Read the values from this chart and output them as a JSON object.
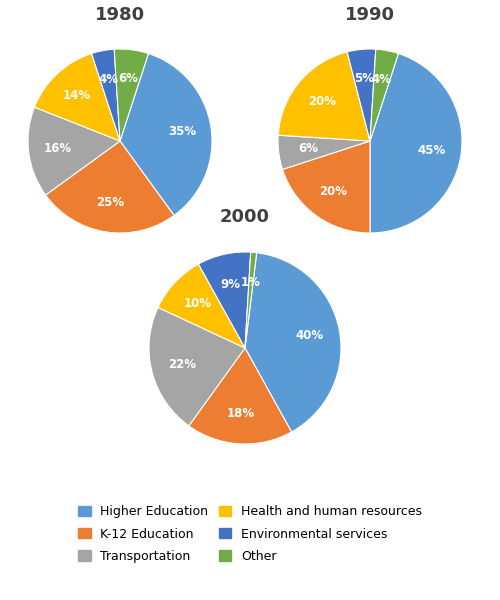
{
  "title_1980": "1980",
  "title_1990": "1990",
  "title_2000": "2000",
  "categories": [
    "Higher Education",
    "K-12 Education",
    "Transportation",
    "Health and human resources",
    "Environmental services",
    "Other"
  ],
  "legend_order": [
    "Higher Education",
    "K-12 Education",
    "Transportation",
    "Health and human resources",
    "Environmental services",
    "Other"
  ],
  "colors": [
    "#5B9BD5",
    "#ED7D31",
    "#A5A5A5",
    "#FFC000",
    "#4472C4",
    "#70AD47"
  ],
  "data_1980": [
    35,
    25,
    16,
    14,
    4,
    6
  ],
  "data_1990": [
    45,
    20,
    6,
    20,
    5,
    4
  ],
  "data_2000": [
    40,
    18,
    22,
    10,
    9,
    1
  ],
  "startangle_1980": 72,
  "startangle_1990": 72,
  "startangle_2000": 83,
  "label_color": "white",
  "title_fontsize": 13,
  "label_fontsize": 8.5,
  "legend_fontsize": 9,
  "bg_color": "white"
}
